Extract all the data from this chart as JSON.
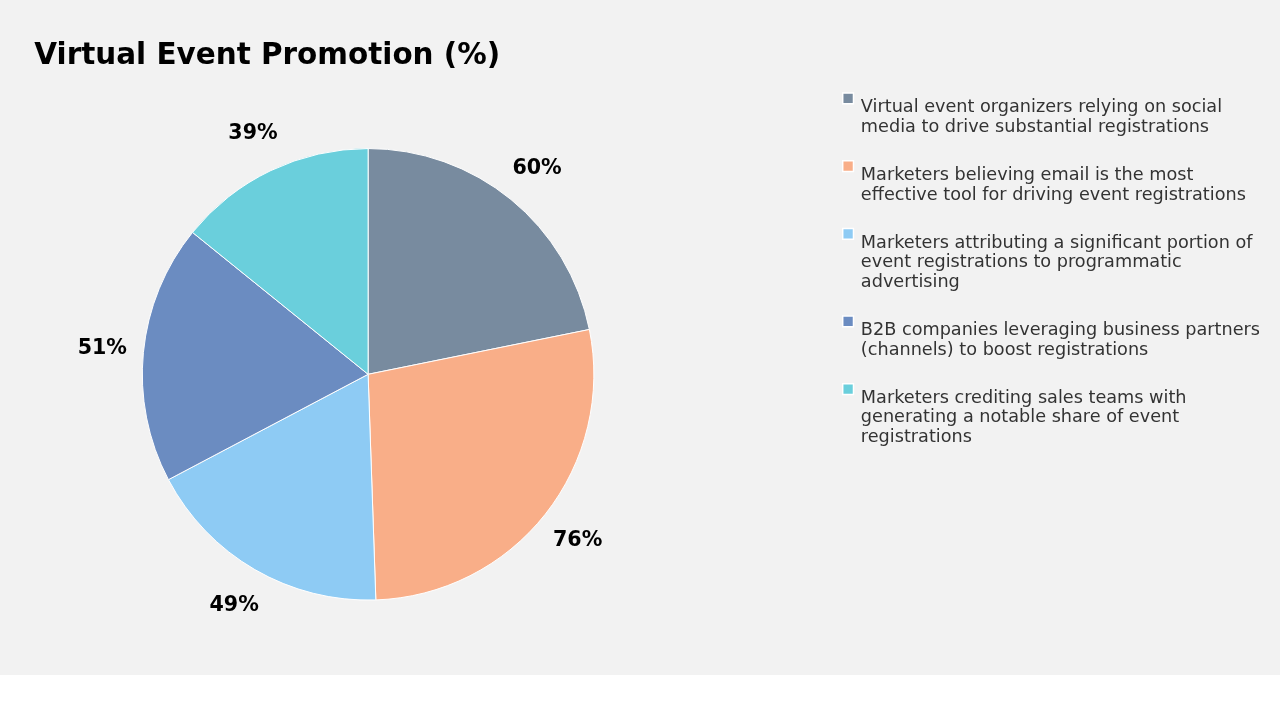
{
  "chart_data": {
    "type": "pie",
    "title": "Virtual Event Promotion (%)",
    "categories": [
      "Virtual event organizers relying on social media to drive substantial registrations",
      "Marketers believing email is the most effective tool for driving event registrations",
      "Marketers attributing a significant portion of event registrations to programmatic advertising",
      "B2B companies leveraging business partners (channels) to boost registrations",
      "Marketers crediting sales teams with generating a notable share of event registrations"
    ],
    "values": [
      60,
      76,
      49,
      51,
      39
    ],
    "value_labels": [
      "60%",
      "76%",
      "49%",
      "51%",
      "39%"
    ],
    "colors": [
      "#788b9f",
      "#f9ae88",
      "#8ecbf4",
      "#6b8cc1",
      "#6acfdc"
    ],
    "legend": "right"
  }
}
